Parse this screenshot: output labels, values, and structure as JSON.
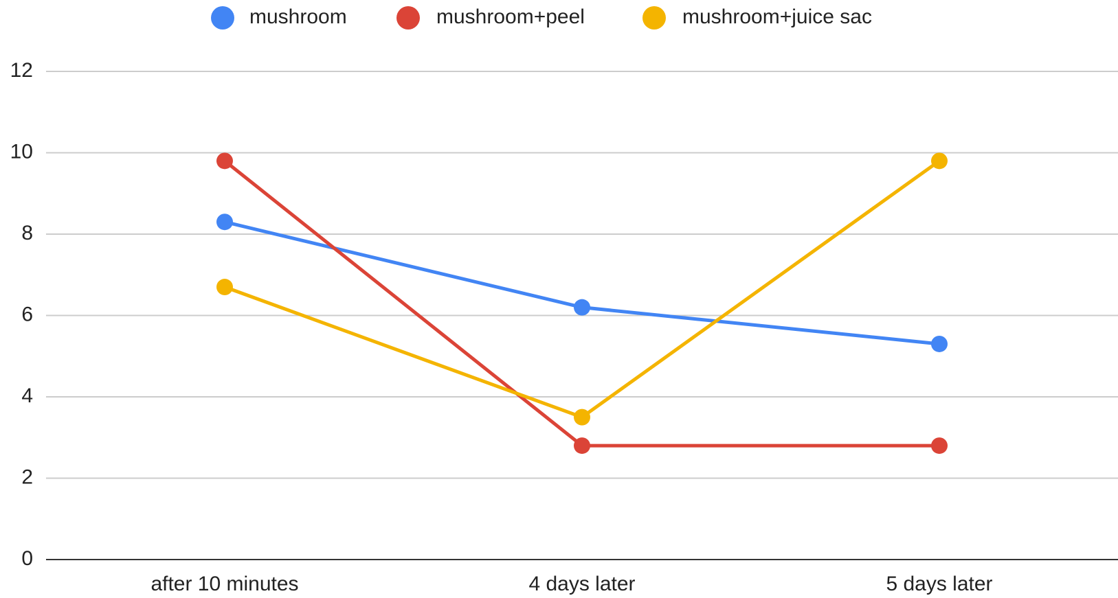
{
  "chart_data": {
    "type": "line",
    "categories": [
      "after 10 minutes",
      "4 days later",
      "5 days later"
    ],
    "series": [
      {
        "name": "mushroom",
        "color": "#4285f4",
        "values": [
          8.3,
          6.2,
          5.3
        ]
      },
      {
        "name": "mushroom+peel",
        "color": "#db4437",
        "values": [
          9.8,
          2.8,
          2.8
        ]
      },
      {
        "name": "mushroom+juice sac",
        "color": "#f4b400",
        "values": [
          6.7,
          3.5,
          9.8
        ]
      }
    ],
    "ylim": [
      0,
      12
    ],
    "yticks": [
      0,
      2,
      4,
      6,
      8,
      10,
      12
    ],
    "grid": true,
    "legend": "top"
  }
}
